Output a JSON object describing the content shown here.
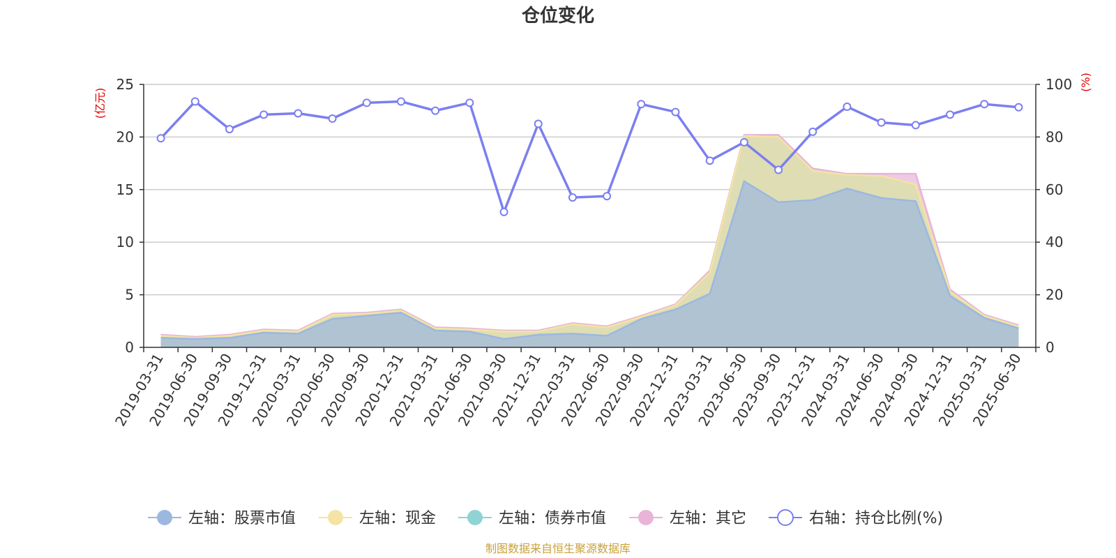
{
  "chart_data": {
    "type": "area",
    "title": "仓位变化",
    "source_note": "制图数据来自恒生聚源数据库",
    "left_axis": {
      "unit": "(亿元)",
      "ylim": [
        0,
        25
      ],
      "ticks": [
        0,
        5,
        10,
        15,
        20,
        25
      ]
    },
    "right_axis": {
      "unit": "(%)",
      "ylim": [
        0,
        100
      ],
      "ticks": [
        0,
        20,
        40,
        60,
        80,
        100
      ]
    },
    "grid": true,
    "legend_position": "bottom",
    "categories": [
      "2019-03-31",
      "2019-06-30",
      "2019-09-30",
      "2019-12-31",
      "2020-03-31",
      "2020-06-30",
      "2020-09-30",
      "2020-12-31",
      "2021-03-31",
      "2021-06-30",
      "2021-09-30",
      "2021-12-31",
      "2022-03-31",
      "2022-06-30",
      "2022-09-30",
      "2022-12-31",
      "2023-03-31",
      "2023-06-30",
      "2023-09-30",
      "2023-12-31",
      "2024-03-31",
      "2024-06-30",
      "2024-09-30",
      "2024-12-31",
      "2025-03-31",
      "2025-06-30"
    ],
    "series": [
      {
        "name": "左轴：股票市值",
        "axis": "left",
        "color": "#9bb8e0",
        "values": [
          0.9,
          0.8,
          0.9,
          1.4,
          1.3,
          2.7,
          3.0,
          3.3,
          1.6,
          1.5,
          0.8,
          1.2,
          1.3,
          1.1,
          2.7,
          3.6,
          5.1,
          15.8,
          13.8,
          14.0,
          15.1,
          14.2,
          13.9,
          4.9,
          2.8,
          1.8
        ]
      },
      {
        "name": "左轴：现金",
        "axis": "left",
        "color": "#f5e3a4",
        "values": [
          0.2,
          0.1,
          0.2,
          0.2,
          0.2,
          0.4,
          0.2,
          0.2,
          0.2,
          0.2,
          0.7,
          0.3,
          0.9,
          0.8,
          0.2,
          0.4,
          2.0,
          4.3,
          6.2,
          2.8,
          1.3,
          2.1,
          1.6,
          0.4,
          0.2,
          0.2
        ]
      },
      {
        "name": "左轴：债券市值",
        "axis": "left",
        "color": "#8fd3d3",
        "values": [
          0,
          0,
          0,
          0,
          0,
          0,
          0,
          0,
          0,
          0,
          0,
          0,
          0,
          0,
          0,
          0,
          0,
          0,
          0,
          0,
          0,
          0,
          0,
          0,
          0,
          0
        ]
      },
      {
        "name": "左轴：其它",
        "axis": "left",
        "color": "#e8b4d8",
        "values": [
          0.1,
          0.1,
          0.1,
          0.1,
          0.1,
          0.1,
          0.1,
          0.1,
          0.1,
          0.1,
          0.1,
          0.1,
          0.1,
          0.1,
          0.1,
          0.1,
          0.2,
          0.1,
          0.2,
          0.2,
          0.1,
          0.2,
          1.0,
          0.2,
          0.1,
          0.1
        ]
      },
      {
        "name": "右轴：持仓比例(%)",
        "axis": "right",
        "color": "#7b7ff0",
        "type": "line",
        "values": [
          79.5,
          93.5,
          83,
          88.5,
          89,
          87,
          93,
          93.5,
          90,
          93,
          51.5,
          85,
          57,
          57.5,
          92.5,
          89.5,
          71,
          78,
          67.5,
          82,
          91.5,
          85.5,
          84.5,
          88.5,
          92.5,
          91.3
        ]
      }
    ]
  }
}
